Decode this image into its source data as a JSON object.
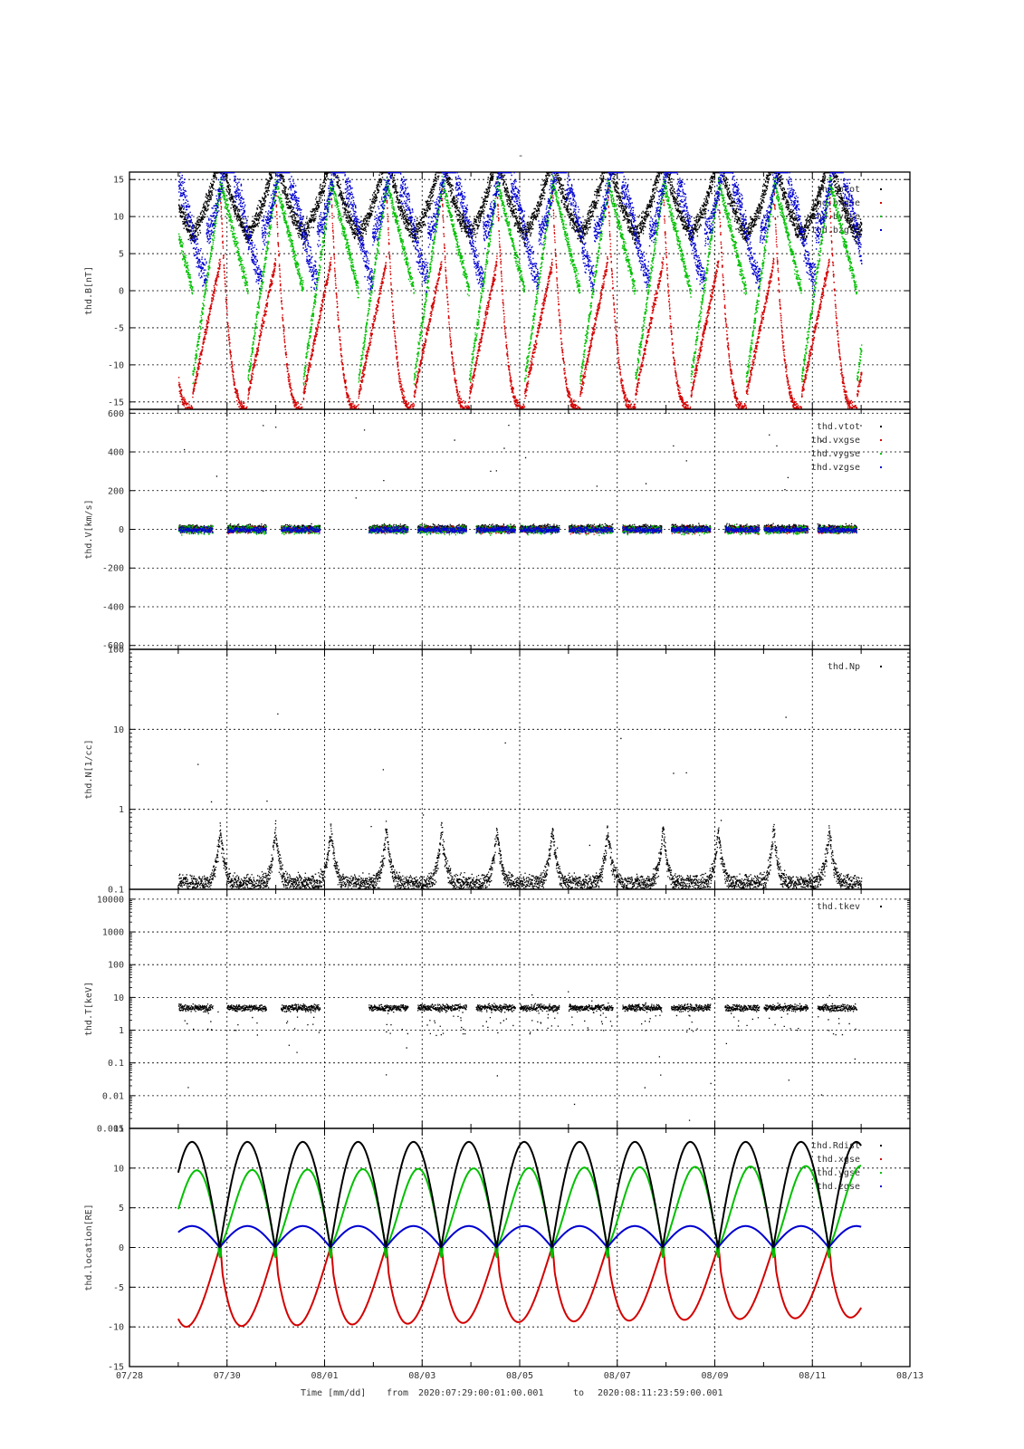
{
  "title": "-",
  "footer": {
    "xlabel": "Time [mm/dd]",
    "from_label": "from",
    "from_value": "2020:07:29:00:01:00.001",
    "to_label": "to",
    "to_value": "2020:08:11:23:59:00.001"
  },
  "colors": {
    "black": "#000000",
    "red": "#d40000",
    "green": "#00c000",
    "blue": "#0000d0",
    "grid": "#000000"
  },
  "x_axis": {
    "range_days": [
      0,
      16
    ],
    "ticks": [
      {
        "day": 0,
        "label": "07/28"
      },
      {
        "day": 2,
        "label": "07/30"
      },
      {
        "day": 4,
        "label": "08/01"
      },
      {
        "day": 6,
        "label": "08/03"
      },
      {
        "day": 8,
        "label": "08/05"
      },
      {
        "day": 10,
        "label": "08/07"
      },
      {
        "day": 12,
        "label": "08/09"
      },
      {
        "day": 14,
        "label": "08/11"
      },
      {
        "day": 16,
        "label": "08/13"
      }
    ]
  },
  "chart_data": [
    {
      "type": "scatter",
      "ylabel": "thd.B[nT]",
      "ylim": [
        -16,
        16
      ],
      "yscale": "linear",
      "yticks": [
        15,
        10,
        5,
        0,
        -5,
        -10,
        -15
      ],
      "grid": true,
      "legend_position": "top-right",
      "series": [
        {
          "name": "thd.btot",
          "color": "black"
        },
        {
          "name": "thd.bxgse",
          "color": "red"
        },
        {
          "name": "thd.bygse",
          "color": "green"
        },
        {
          "name": "thd.bzgse",
          "color": "blue"
        }
      ],
      "data_range_days": [
        1.0,
        15.0
      ]
    },
    {
      "type": "scatter",
      "ylabel": "thd.V[km/s]",
      "ylim": [
        -620,
        620
      ],
      "yscale": "linear",
      "yticks": [
        600,
        400,
        200,
        0,
        -200,
        -400,
        -600
      ],
      "grid": true,
      "legend_position": "top-right",
      "series": [
        {
          "name": "thd.vtot",
          "color": "black"
        },
        {
          "name": "thd.vxgse",
          "color": "red"
        },
        {
          "name": "thd.vygse",
          "color": "green"
        },
        {
          "name": "thd.vzgse",
          "color": "blue"
        }
      ],
      "data_segments_days": [
        [
          1.0,
          1.7
        ],
        [
          2.0,
          2.8
        ],
        [
          3.1,
          3.9
        ],
        [
          4.9,
          5.7
        ],
        [
          5.9,
          6.9
        ],
        [
          7.1,
          7.9
        ],
        [
          8.0,
          8.8
        ],
        [
          9.0,
          9.9
        ],
        [
          10.1,
          10.9
        ],
        [
          11.1,
          11.9
        ],
        [
          12.2,
          12.9
        ],
        [
          13.0,
          13.9
        ],
        [
          14.1,
          14.9
        ]
      ]
    },
    {
      "type": "scatter",
      "ylabel": "thd.N[1/cc]",
      "ylim": [
        0.1,
        100
      ],
      "yscale": "log",
      "yticks": [
        100,
        10,
        1,
        0.1
      ],
      "grid": true,
      "legend_position": "top-right",
      "series": [
        {
          "name": "thd.Np",
          "color": "black"
        }
      ]
    },
    {
      "type": "scatter",
      "ylabel": "thd.T[keV]",
      "ylim": [
        0.001,
        20000
      ],
      "yscale": "log",
      "yticks": [
        10000,
        1000,
        100,
        10,
        1,
        0.1,
        0.01,
        0.001
      ],
      "ytick_labels": [
        "10000",
        "1000",
        "100",
        "10",
        "1",
        "0.1",
        "0.01",
        "0.001"
      ],
      "grid": true,
      "legend_position": "top-right",
      "series": [
        {
          "name": "thd.tkev",
          "color": "black"
        }
      ],
      "typical_value_keV": 5
    },
    {
      "type": "line",
      "ylabel": "thd.location[RE]",
      "ylim": [
        -15,
        15
      ],
      "yscale": "linear",
      "yticks": [
        15,
        10,
        5,
        0,
        -5,
        -10,
        -15
      ],
      "grid": true,
      "legend_position": "top-right",
      "series": [
        {
          "name": "thd.Rdist",
          "color": "black",
          "max": 13.3
        },
        {
          "name": "thd.xgse",
          "color": "red",
          "min": -10.0
        },
        {
          "name": "thd.ygse",
          "color": "green",
          "max": 10.0
        },
        {
          "name": "thd.zgse",
          "color": "blue",
          "max": 2.7
        }
      ],
      "perigee_days": [
        1.85,
        2.99,
        4.11,
        5.25,
        6.38,
        7.52,
        8.65,
        9.79,
        10.92,
        12.06,
        13.19,
        14.33
      ],
      "orbit_period_days": 1.135,
      "data_range_days": [
        1.0,
        15.0
      ]
    }
  ]
}
